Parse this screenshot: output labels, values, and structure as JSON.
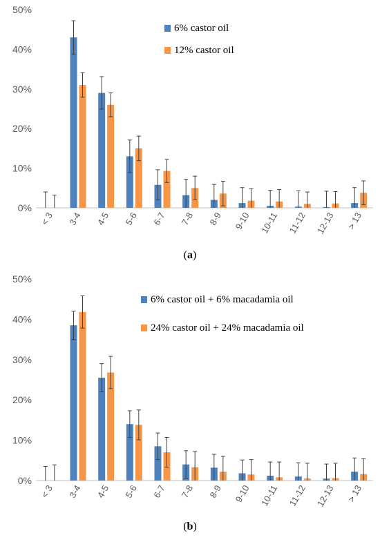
{
  "colors": {
    "blue": "#4f81bd",
    "orange": "#f79646",
    "axis": "#bfbfbf",
    "error": "#404040"
  },
  "chart_data": [
    {
      "type": "bar",
      "panel_label": "a",
      "categories": [
        "< 3",
        "3-4",
        "4-5",
        "5-6",
        "6-7",
        "7-8",
        "8-9",
        "9-10",
        "10-11",
        "11-12",
        "12-13",
        "> 13"
      ],
      "yticks": [
        "0%",
        "10%",
        "20%",
        "30%",
        "40%",
        "50%"
      ],
      "ylim": [
        0,
        50
      ],
      "legend_position": "top-right",
      "series": [
        {
          "name": "6% castor oil",
          "color": "#4f81bd",
          "values": [
            0,
            43,
            29,
            13,
            5.8,
            3.2,
            2,
            1.2,
            0.5,
            0.3,
            0.2,
            1.2
          ],
          "errors": [
            4,
            4.2,
            4.1,
            4.1,
            3.8,
            4,
            3.9,
            3.9,
            3.9,
            4,
            4,
            3.9
          ]
        },
        {
          "name": "12% castor oil",
          "color": "#f79646",
          "values": [
            0,
            31,
            26,
            15,
            9.3,
            5,
            3.6,
            1.8,
            1.6,
            1,
            1.1,
            3.8
          ],
          "errors": [
            3.2,
            3.1,
            3,
            3.1,
            2.9,
            3,
            3.1,
            3,
            3,
            3,
            3,
            3
          ]
        }
      ]
    },
    {
      "type": "bar",
      "panel_label": "b",
      "categories": [
        "< 3",
        "3-4",
        "4-5",
        "5-6",
        "6-7",
        "7-8",
        "8-9",
        "9-10",
        "10-11",
        "11-12",
        "12-13",
        "> 13"
      ],
      "yticks": [
        "0%",
        "10%",
        "20%",
        "30%",
        "40%",
        "50%"
      ],
      "ylim": [
        0,
        50
      ],
      "legend_position": "top-right",
      "series": [
        {
          "name": "6% castor oil + 6% macadamia oil",
          "color": "#4f81bd",
          "values": [
            0,
            38.5,
            25.5,
            14,
            8.5,
            4,
            3.2,
            1.8,
            1.2,
            1,
            0.5,
            2.2
          ],
          "errors": [
            3.5,
            3.5,
            3.5,
            3.3,
            3.3,
            3.4,
            3.3,
            3.3,
            3.4,
            3.4,
            3.6,
            3.4
          ]
        },
        {
          "name": "24% castor oil + 24% macadamia oil",
          "color": "#f79646",
          "values": [
            0,
            41.8,
            26.8,
            13.8,
            7,
            3.3,
            2.2,
            1.5,
            0.8,
            0.5,
            0.6,
            1.6
          ],
          "errors": [
            3.9,
            4,
            4,
            3.7,
            3.7,
            3.9,
            3.8,
            3.7,
            3.8,
            3.8,
            3.7,
            3.8
          ]
        }
      ]
    }
  ]
}
